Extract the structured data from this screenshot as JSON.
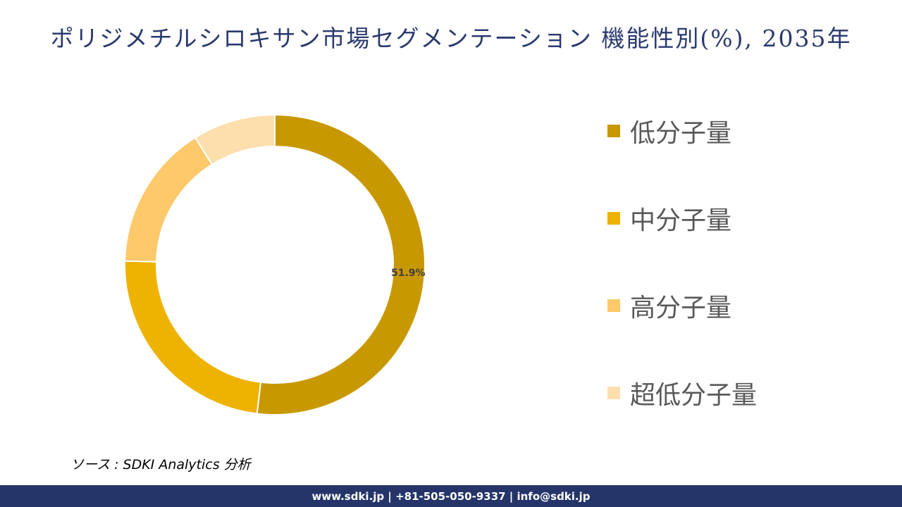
{
  "header": {
    "title": "ポリジメチルシロキサン市場セグメンテーション 機能性別(%), 2035年"
  },
  "chart_data": {
    "type": "pie",
    "subtype": "donut",
    "title": "ポリジメチルシロキサン市場セグメンテーション 機能性別(%), 2035年",
    "categories": [
      "低分子量",
      "中分子量",
      "高分子量",
      "超低分子量"
    ],
    "values": [
      51.9,
      23.5,
      15.7,
      8.9
    ],
    "colors": [
      "#c89800",
      "#eeb200",
      "#fdc96a",
      "#fddfae"
    ],
    "data_labels": [
      {
        "category": "低分子量",
        "text": "51.9%"
      }
    ],
    "start_angle_deg": 0,
    "direction": "clockwise",
    "legend_position": "right"
  },
  "labels": {
    "primary_value": "51.9%"
  },
  "legend": {
    "items": [
      {
        "label": "低分子量",
        "color": "#c89800"
      },
      {
        "label": "中分子量",
        "color": "#eeb200"
      },
      {
        "label": "高分子量",
        "color": "#fdc96a"
      },
      {
        "label": "超低分子量",
        "color": "#fddfae"
      }
    ]
  },
  "source": {
    "text": "ソース : SDKI Analytics 分析"
  },
  "footer": {
    "text": "www.sdki.jp | +81-505-050-9337 | info@sdki.jp",
    "background": "#253569"
  }
}
